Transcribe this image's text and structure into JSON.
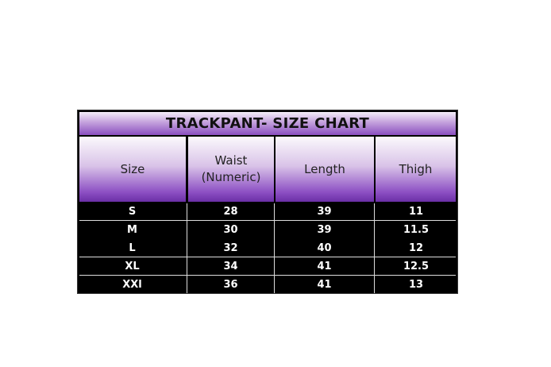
{
  "title": "TRACKPANT- SIZE CHART",
  "headers": [
    "Size",
    "Waist\n(Numeric)",
    "Length",
    "Thigh"
  ],
  "header_lines": {
    "waist_1": "Waist",
    "waist_2": "(Numeric)"
  },
  "rows": [
    [
      "S",
      "28",
      "39",
      "11"
    ],
    [
      "M",
      "30",
      "39",
      "11.5"
    ],
    [
      "L",
      "32",
      "40",
      "12"
    ],
    [
      "XL",
      "34",
      "41",
      "12.5"
    ],
    [
      "XXl",
      "36",
      "41",
      "13"
    ]
  ],
  "colors": {
    "header_purple": "#8d50c4",
    "body_bg": "#000000",
    "body_text": "#ffffff"
  }
}
